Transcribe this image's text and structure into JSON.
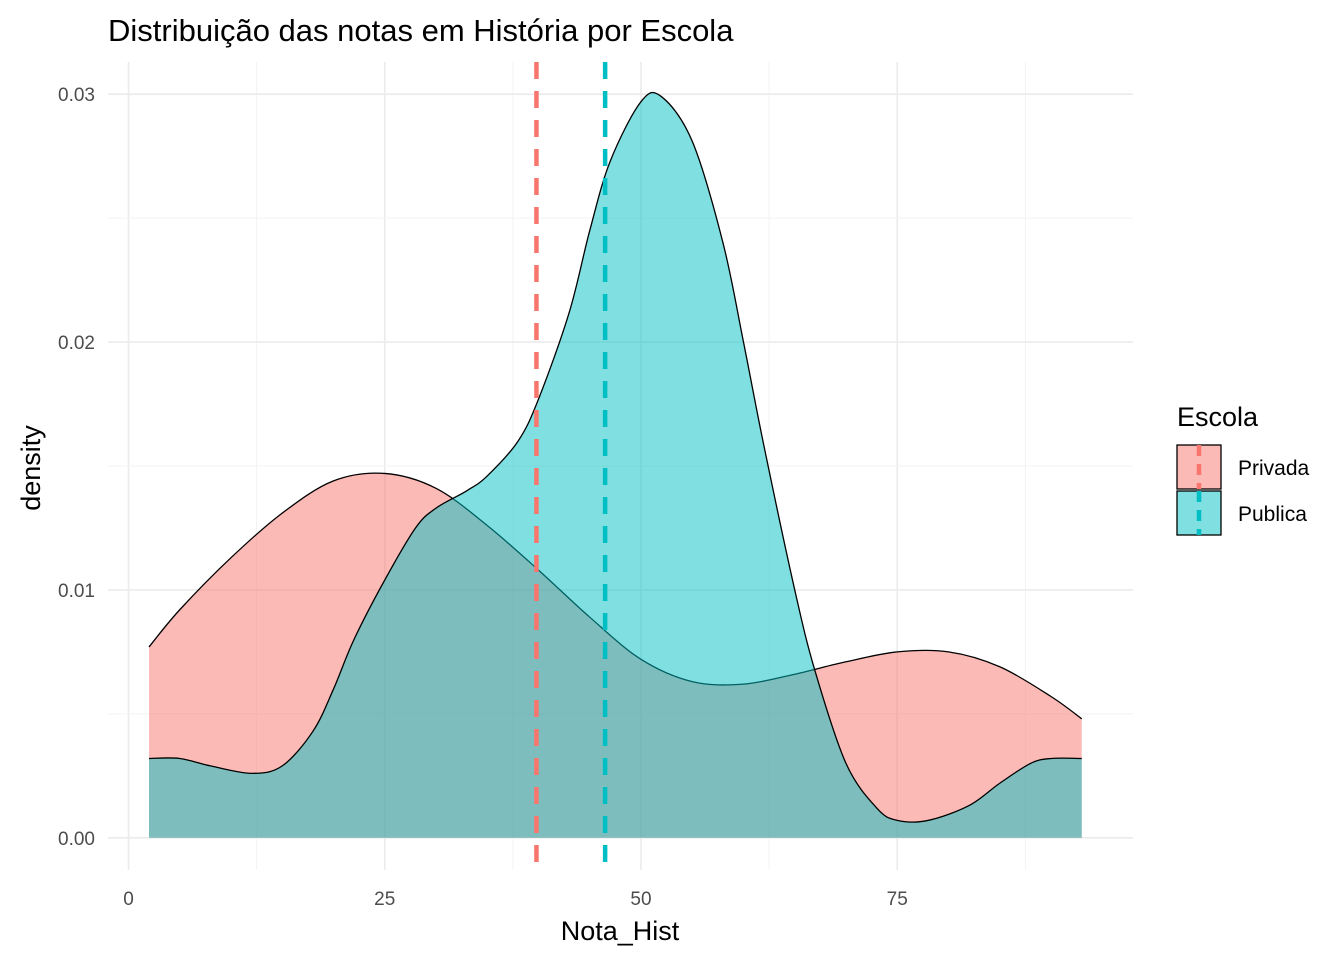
{
  "chart_data": {
    "type": "area",
    "title": "Distribuição das notas em História por Escola",
    "xlabel": "Nota_Hist",
    "ylabel": "density",
    "xlim": [
      -2,
      98
    ],
    "ylim": [
      -0.0013,
      0.0313
    ],
    "x_ticks": [
      0,
      25,
      50,
      75
    ],
    "x_tick_labels": [
      "0",
      "25",
      "50",
      "75"
    ],
    "y_ticks": [
      0,
      0.01,
      0.02,
      0.03
    ],
    "y_tick_labels": [
      "0.00",
      "0.01",
      "0.02",
      "0.03"
    ],
    "grid": true,
    "legend": {
      "title": "Escola",
      "position": "right"
    },
    "series": [
      {
        "name": "Privada",
        "color": "#F8766D",
        "fill_opacity": 0.5,
        "mean": 39.8,
        "x": [
          2,
          5,
          10,
          15,
          20,
          25,
          30,
          35,
          40,
          45,
          50,
          55,
          60,
          65,
          70,
          75,
          80,
          85,
          90,
          93
        ],
        "y": [
          0.0077,
          0.0092,
          0.0113,
          0.0131,
          0.0144,
          0.0147,
          0.0141,
          0.0126,
          0.0108,
          0.0089,
          0.0072,
          0.0063,
          0.0062,
          0.0066,
          0.0071,
          0.0075,
          0.0075,
          0.0069,
          0.0057,
          0.0048
        ]
      },
      {
        "name": "Publica",
        "color": "#00BFC4",
        "fill_opacity": 0.5,
        "mean": 46.5,
        "x": [
          2,
          5,
          8,
          12,
          15,
          18,
          20,
          22,
          25,
          28,
          30,
          33,
          35,
          38,
          40,
          43,
          45,
          47,
          50,
          52,
          55,
          58,
          60,
          62,
          65,
          67,
          70,
          73,
          75,
          78,
          82,
          85,
          88,
          90,
          93
        ],
        "y": [
          0.0032,
          0.0032,
          0.0029,
          0.0026,
          0.0029,
          0.0043,
          0.006,
          0.008,
          0.0104,
          0.0125,
          0.0133,
          0.014,
          0.0146,
          0.016,
          0.0177,
          0.0212,
          0.0245,
          0.0273,
          0.0297,
          0.0299,
          0.0281,
          0.024,
          0.02,
          0.0158,
          0.01,
          0.0067,
          0.003,
          0.0012,
          0.0007,
          0.0007,
          0.0013,
          0.0022,
          0.003,
          0.0032,
          0.0032
        ]
      }
    ]
  }
}
